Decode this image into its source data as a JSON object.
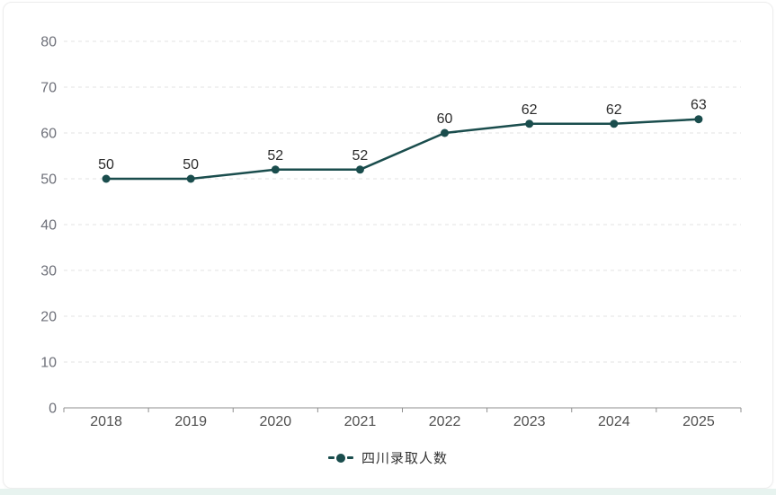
{
  "legend": {
    "items": [
      {
        "label": "四川录取人数"
      }
    ]
  },
  "chart_data": {
    "type": "line",
    "title": "",
    "xlabel": "",
    "ylabel": "",
    "categories": [
      "2018",
      "2019",
      "2020",
      "2021",
      "2022",
      "2023",
      "2024",
      "2025"
    ],
    "series": [
      {
        "name": "四川录取人数",
        "values": [
          50,
          50,
          52,
          52,
          60,
          62,
          62,
          63
        ],
        "color": "#1a4d4d"
      }
    ],
    "ylim": [
      0,
      80
    ],
    "ytick_step": 10,
    "grid": "dashed horizontal",
    "legend_position": "bottom",
    "data_labels": true,
    "colors": {
      "series": "#1a4d4d",
      "grid_line": "#e3e3e3",
      "axis_line": "#8f8f8f",
      "y_tick_label": "#6e7079",
      "x_tick_label": "#4f4f4f",
      "data_label": "#2b2b2b",
      "legend_text": "#333333",
      "card_border": "#ededed",
      "bottom_strip": "#e7f3ef"
    }
  }
}
